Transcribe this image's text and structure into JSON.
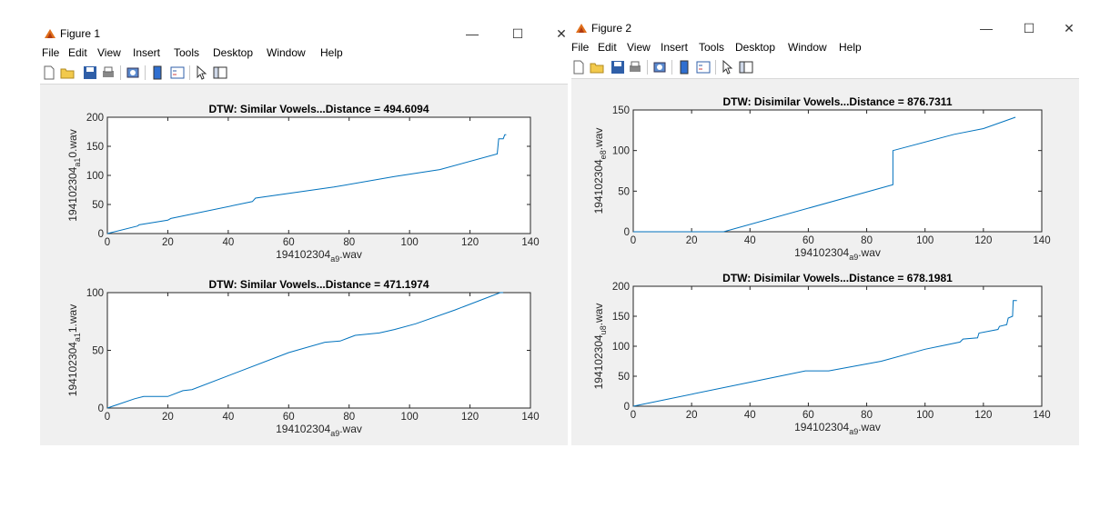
{
  "figure1": {
    "title": "Figure 1",
    "menu": [
      "File",
      "Edit",
      "View",
      "Insert",
      "Tools",
      "Desktop",
      "Window",
      "Help"
    ],
    "controls": {
      "minimize": "—",
      "maximize": "☐",
      "close": "✕"
    }
  },
  "figure2": {
    "title": "Figure 2",
    "menu": [
      "File",
      "Edit",
      "View",
      "Insert",
      "Tools",
      "Desktop",
      "Window",
      "Help"
    ],
    "controls": {
      "minimize": "—",
      "maximize": "☐",
      "close": "✕"
    }
  },
  "colors": {
    "line": "#0072bd",
    "axes_bg": "#ffffff",
    "fig_bg": "#f0f0f0"
  },
  "icons": [
    "new-file-icon",
    "open-folder-icon",
    "save-icon",
    "print-icon",
    "print-preview-icon",
    "colorbar-icon",
    "legend-icon",
    "pointer-icon",
    "property-editor-icon"
  ],
  "chart_data": [
    {
      "type": "line",
      "title": "DTW: Similar Vowels...Distance = 494.6094",
      "xlabel": {
        "main": "194102304",
        "sub": "a9",
        "tail": ".wav"
      },
      "ylabel": {
        "main": "194102304",
        "sub": "a1",
        "tail": "0.wav"
      },
      "xlim": [
        0,
        140
      ],
      "ylim": [
        0,
        200
      ],
      "xticks": [
        0,
        20,
        40,
        60,
        80,
        100,
        120,
        140
      ],
      "yticks": [
        0,
        50,
        100,
        150,
        200
      ],
      "series": [
        {
          "x": [
            0,
            10,
            10.5,
            20,
            21,
            48,
            49,
            75,
            95,
            110,
            129,
            129.5,
            131,
            131.5,
            132
          ],
          "y": [
            0,
            13,
            15,
            23,
            26,
            55,
            61,
            80,
            98,
            110,
            137,
            163,
            163,
            170,
            170
          ]
        }
      ]
    },
    {
      "type": "line",
      "title": "DTW: Similar Vowels...Distance = 471.1974",
      "xlabel": {
        "main": "194102304",
        "sub": "a9",
        "tail": ".wav"
      },
      "ylabel": {
        "main": "194102304",
        "sub": "a1",
        "tail": "1.wav"
      },
      "xlim": [
        0,
        140
      ],
      "ylim": [
        0,
        100
      ],
      "xticks": [
        0,
        20,
        40,
        60,
        80,
        100,
        120,
        140
      ],
      "yticks": [
        0,
        50,
        100
      ],
      "series": [
        {
          "x": [
            0,
            9,
            12,
            20,
            25,
            28,
            60,
            72,
            77,
            82,
            90,
            95,
            102,
            115,
            130,
            131
          ],
          "y": [
            0,
            8,
            10,
            10,
            15,
            16,
            48,
            57,
            58,
            63,
            65,
            68,
            73,
            85,
            100,
            100
          ]
        }
      ]
    },
    {
      "type": "line",
      "title": "DTW:  Disimilar Vowels...Distance = 876.7311",
      "xlabel": {
        "main": "194102304",
        "sub": "a9",
        "tail": ".wav"
      },
      "ylabel": {
        "main": "194102304",
        "sub": "e8",
        "tail": ".wav"
      },
      "xlim": [
        0,
        140
      ],
      "ylim": [
        0,
        150
      ],
      "xticks": [
        0,
        20,
        40,
        60,
        80,
        100,
        120,
        140
      ],
      "yticks": [
        0,
        50,
        100,
        150
      ],
      "series": [
        {
          "x": [
            0,
            31,
            89,
            89,
            110,
            120,
            131
          ],
          "y": [
            0,
            0,
            58,
            100,
            120,
            127,
            141
          ]
        }
      ]
    },
    {
      "type": "line",
      "title": "DTW:  Disimilar Vowels...Distance = 678.1981",
      "xlabel": {
        "main": "194102304",
        "sub": "a9",
        "tail": ".wav"
      },
      "ylabel": {
        "main": "194102304",
        "sub": "u8",
        "tail": ".wav"
      },
      "xlim": [
        0,
        140
      ],
      "ylim": [
        0,
        200
      ],
      "xticks": [
        0,
        20,
        40,
        60,
        80,
        100,
        120,
        140
      ],
      "yticks": [
        0,
        50,
        100,
        150,
        200
      ],
      "series": [
        {
          "x": [
            0,
            40,
            59,
            67,
            85,
            100,
            112,
            113,
            118,
            118.5,
            125,
            125.5,
            128,
            128.5,
            130,
            130.2,
            131.5
          ],
          "y": [
            0,
            40,
            59,
            59,
            75,
            95,
            107,
            112,
            114,
            122,
            128,
            133,
            136,
            147,
            150,
            176,
            176
          ]
        }
      ]
    }
  ]
}
